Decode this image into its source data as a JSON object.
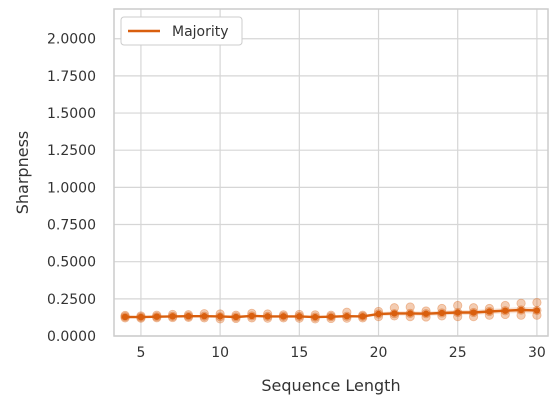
{
  "chart_data": {
    "type": "line",
    "xlabel": "Sequence Length",
    "ylabel": "Sharpness",
    "xlim": [
      3.3,
      30.7
    ],
    "ylim": [
      0,
      2.2
    ],
    "xticks": [
      5,
      10,
      15,
      20,
      25,
      30
    ],
    "xtick_labels": [
      "5",
      "10",
      "15",
      "20",
      "25",
      "30"
    ],
    "yticks": [
      0,
      0.25,
      0.5,
      0.75,
      1.0,
      1.25,
      1.5,
      1.75,
      2.0
    ],
    "ytick_labels": [
      "0.0000",
      "0.2500",
      "0.5000",
      "0.7500",
      "1.0000",
      "1.2500",
      "1.5000",
      "1.7500",
      "2.0000"
    ],
    "grid": true,
    "legend_position": "top-left",
    "series": [
      {
        "name": "Majority",
        "color": "#d95f0e",
        "x": [
          4,
          5,
          6,
          7,
          8,
          9,
          10,
          11,
          12,
          13,
          14,
          15,
          16,
          17,
          18,
          19,
          20,
          21,
          22,
          23,
          24,
          25,
          26,
          27,
          28,
          29,
          30
        ],
        "y": [
          0.128,
          0.127,
          0.13,
          0.132,
          0.133,
          0.133,
          0.132,
          0.128,
          0.135,
          0.132,
          0.132,
          0.132,
          0.127,
          0.13,
          0.133,
          0.132,
          0.148,
          0.152,
          0.152,
          0.15,
          0.155,
          0.158,
          0.158,
          0.165,
          0.17,
          0.175,
          0.172
        ],
        "ci_low": [
          0.124,
          0.123,
          0.125,
          0.127,
          0.128,
          0.128,
          0.126,
          0.122,
          0.128,
          0.126,
          0.126,
          0.126,
          0.121,
          0.123,
          0.126,
          0.125,
          0.135,
          0.138,
          0.138,
          0.136,
          0.14,
          0.142,
          0.142,
          0.148,
          0.152,
          0.155,
          0.15
        ],
        "ci_high": [
          0.132,
          0.131,
          0.135,
          0.137,
          0.138,
          0.138,
          0.138,
          0.134,
          0.142,
          0.138,
          0.138,
          0.138,
          0.133,
          0.137,
          0.14,
          0.139,
          0.161,
          0.166,
          0.166,
          0.164,
          0.17,
          0.174,
          0.174,
          0.182,
          0.188,
          0.195,
          0.194
        ],
        "points": [
          [
            4,
            0.122
          ],
          [
            4,
            0.13
          ],
          [
            4,
            0.138
          ],
          [
            5,
            0.12
          ],
          [
            5,
            0.127
          ],
          [
            5,
            0.135
          ],
          [
            6,
            0.123
          ],
          [
            6,
            0.13
          ],
          [
            6,
            0.14
          ],
          [
            7,
            0.124
          ],
          [
            7,
            0.132
          ],
          [
            7,
            0.145
          ],
          [
            8,
            0.125
          ],
          [
            8,
            0.133
          ],
          [
            8,
            0.143
          ],
          [
            9,
            0.122
          ],
          [
            9,
            0.133
          ],
          [
            9,
            0.15
          ],
          [
            10,
            0.115
          ],
          [
            10,
            0.13
          ],
          [
            10,
            0.148
          ],
          [
            11,
            0.118
          ],
          [
            11,
            0.128
          ],
          [
            11,
            0.14
          ],
          [
            12,
            0.122
          ],
          [
            12,
            0.135
          ],
          [
            12,
            0.152
          ],
          [
            13,
            0.12
          ],
          [
            13,
            0.132
          ],
          [
            13,
            0.148
          ],
          [
            14,
            0.122
          ],
          [
            14,
            0.132
          ],
          [
            14,
            0.142
          ],
          [
            15,
            0.12
          ],
          [
            15,
            0.132
          ],
          [
            15,
            0.145
          ],
          [
            16,
            0.115
          ],
          [
            16,
            0.127
          ],
          [
            16,
            0.142
          ],
          [
            17,
            0.118
          ],
          [
            17,
            0.13
          ],
          [
            17,
            0.14
          ],
          [
            18,
            0.12
          ],
          [
            18,
            0.133
          ],
          [
            18,
            0.16
          ],
          [
            19,
            0.122
          ],
          [
            19,
            0.132
          ],
          [
            19,
            0.14
          ],
          [
            20,
            0.13
          ],
          [
            20,
            0.148
          ],
          [
            20,
            0.165
          ],
          [
            21,
            0.135
          ],
          [
            21,
            0.15
          ],
          [
            21,
            0.19
          ],
          [
            22,
            0.13
          ],
          [
            22,
            0.152
          ],
          [
            22,
            0.195
          ],
          [
            23,
            0.128
          ],
          [
            23,
            0.15
          ],
          [
            23,
            0.168
          ],
          [
            24,
            0.135
          ],
          [
            24,
            0.155
          ],
          [
            24,
            0.185
          ],
          [
            25,
            0.13
          ],
          [
            25,
            0.158
          ],
          [
            25,
            0.205
          ],
          [
            26,
            0.13
          ],
          [
            26,
            0.158
          ],
          [
            26,
            0.19
          ],
          [
            27,
            0.14
          ],
          [
            27,
            0.165
          ],
          [
            27,
            0.185
          ],
          [
            28,
            0.145
          ],
          [
            28,
            0.17
          ],
          [
            28,
            0.205
          ],
          [
            29,
            0.14
          ],
          [
            29,
            0.175
          ],
          [
            29,
            0.22
          ],
          [
            30,
            0.14
          ],
          [
            30,
            0.172
          ],
          [
            30,
            0.225
          ]
        ]
      }
    ]
  }
}
